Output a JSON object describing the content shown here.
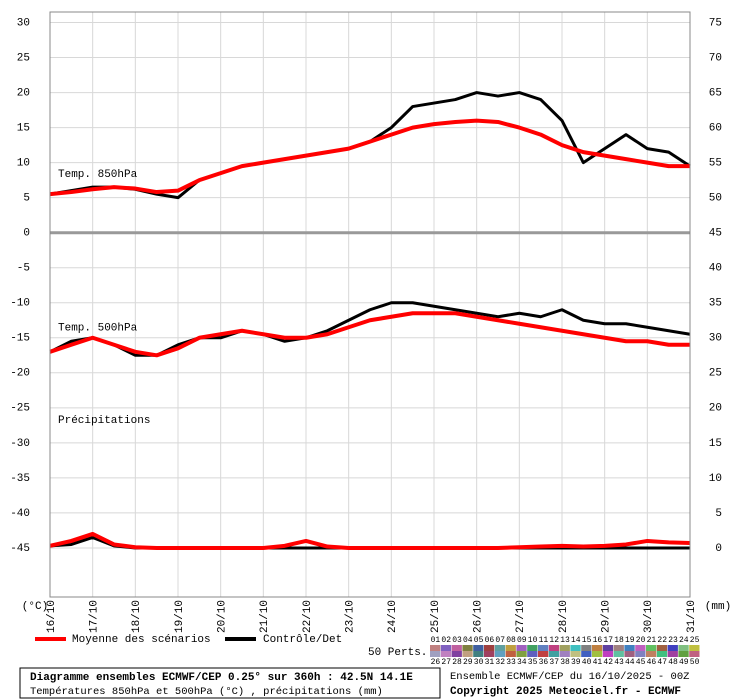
{
  "chart_data": {
    "type": "line",
    "panel_labels": [
      "Temp. 850hPa",
      "Temp. 500hPa",
      "Précipitations"
    ],
    "y_unit": "(°C)",
    "y2_unit": "(mm)",
    "x": [
      0,
      12,
      24,
      36,
      48,
      60,
      72,
      84,
      96,
      108,
      120,
      132,
      144,
      156,
      168,
      180,
      192,
      204,
      216,
      228,
      240,
      252,
      264,
      276,
      288,
      300,
      312,
      324,
      336,
      348,
      360
    ],
    "xlim": [
      0,
      360
    ],
    "xticks": [
      {
        "value": 0,
        "label": "16/10"
      },
      {
        "value": 24,
        "label": "17/10"
      },
      {
        "value": 48,
        "label": "18/10"
      },
      {
        "value": 72,
        "label": "19/10"
      },
      {
        "value": 96,
        "label": "20/10"
      },
      {
        "value": 120,
        "label": "21/10"
      },
      {
        "value": 144,
        "label": "22/10"
      },
      {
        "value": 168,
        "label": "23/10"
      },
      {
        "value": 192,
        "label": "24/10"
      },
      {
        "value": 216,
        "label": "25/10"
      },
      {
        "value": 240,
        "label": "26/10"
      },
      {
        "value": 264,
        "label": "27/10"
      },
      {
        "value": 288,
        "label": "28/10"
      },
      {
        "value": 312,
        "label": "29/10"
      },
      {
        "value": 336,
        "label": "30/10"
      },
      {
        "value": 360,
        "label": "31/10"
      }
    ],
    "ylim": [
      -52,
      31.5
    ],
    "yticks": [
      30,
      25,
      20,
      15,
      10,
      5,
      0,
      -5,
      -10,
      -15,
      -20,
      -25,
      -30,
      -35,
      -40,
      -45
    ],
    "y2lim": [
      -7,
      76.5
    ],
    "y2ticks": [
      75,
      70,
      65,
      60,
      55,
      50,
      45,
      40,
      35,
      30,
      25,
      20,
      15,
      10,
      5,
      0
    ],
    "grid": true,
    "series": [
      {
        "name": "Moyenne des scénarios",
        "color": "#ff0000",
        "t850": [
          5.5,
          5.8,
          6.2,
          6.5,
          6.3,
          5.8,
          6.0,
          7.5,
          8.5,
          9.5,
          10.0,
          10.5,
          11.0,
          11.5,
          12.0,
          13.0,
          14.0,
          15.0,
          15.5,
          15.8,
          16.0,
          15.8,
          15.0,
          14.0,
          12.5,
          11.5,
          11.0,
          10.5,
          10.0,
          9.5,
          9.5
        ],
        "t500": [
          -17,
          -16,
          -15,
          -16,
          -17,
          -17.5,
          -16.5,
          -15,
          -14.5,
          -14,
          -14.5,
          -15,
          -15,
          -14.5,
          -13.5,
          -12.5,
          -12,
          -11.5,
          -11.5,
          -11.5,
          -12,
          -12.5,
          -13,
          -13.5,
          -14,
          -14.5,
          -15,
          -15.5,
          -15.5,
          -16,
          -16
        ],
        "precip": [
          0.3,
          1,
          2,
          0.5,
          0.1,
          0,
          0,
          0,
          0,
          0,
          0,
          0.3,
          1,
          0.2,
          0,
          0,
          0,
          0,
          0,
          0,
          0,
          0,
          0.1,
          0.2,
          0.3,
          0.2,
          0.3,
          0.5,
          1,
          0.8,
          0.7
        ]
      },
      {
        "name": "Contrôle/Det",
        "color": "#000000",
        "t850": [
          5.5,
          6,
          6.5,
          6.5,
          6.2,
          5.5,
          5,
          7.5,
          8.5,
          9.5,
          10,
          10.5,
          11,
          11.5,
          12,
          13,
          15,
          18,
          18.5,
          19,
          20,
          19.5,
          20,
          19,
          16,
          10,
          12,
          14,
          12,
          11.5,
          9.5
        ],
        "t500": [
          -17,
          -15.5,
          -15,
          -16,
          -17.5,
          -17.5,
          -16,
          -15,
          -15,
          -14,
          -14.5,
          -15.5,
          -15,
          -14,
          -12.5,
          -11,
          -10,
          -10,
          -10.5,
          -11,
          -11.5,
          -12,
          -11.5,
          -12,
          -11,
          -12.5,
          -13,
          -13,
          -13.5,
          -14,
          -14.5
        ],
        "precip": [
          0.3,
          0.5,
          1.5,
          0.3,
          0,
          0,
          0,
          0,
          0,
          0,
          0,
          0,
          0,
          0,
          0,
          0,
          0,
          0,
          0,
          0,
          0,
          0,
          0,
          0,
          0,
          0,
          0,
          0,
          0,
          0,
          0
        ]
      }
    ],
    "perturbations": {
      "label": "50 Perts.",
      "members": [
        {
          "name": "01",
          "color": "#c08080"
        },
        {
          "name": "02",
          "color": "#8060c0"
        },
        {
          "name": "03",
          "color": "#c060a0"
        },
        {
          "name": "04",
          "color": "#808040"
        },
        {
          "name": "05",
          "color": "#4060a0"
        },
        {
          "name": "06",
          "color": "#a04040"
        },
        {
          "name": "07",
          "color": "#60a0a0"
        },
        {
          "name": "08",
          "color": "#c0a040"
        },
        {
          "name": "09",
          "color": "#a060c0"
        },
        {
          "name": "10",
          "color": "#40a060"
        },
        {
          "name": "11",
          "color": "#6080c0"
        },
        {
          "name": "12",
          "color": "#c04080"
        },
        {
          "name": "13",
          "color": "#a0a060"
        },
        {
          "name": "14",
          "color": "#40c0c0"
        },
        {
          "name": "15",
          "color": "#808080"
        },
        {
          "name": "16",
          "color": "#c08040"
        },
        {
          "name": "17",
          "color": "#6040a0"
        },
        {
          "name": "18",
          "color": "#a08080"
        },
        {
          "name": "19",
          "color": "#4080c0"
        },
        {
          "name": "20",
          "color": "#c060c0"
        },
        {
          "name": "21",
          "color": "#60c060"
        },
        {
          "name": "22",
          "color": "#a06040"
        },
        {
          "name": "23",
          "color": "#4040c0"
        },
        {
          "name": "24",
          "color": "#80c080"
        },
        {
          "name": "25",
          "color": "#c0c040"
        },
        {
          "name": "26",
          "color": "#a0a0c0"
        },
        {
          "name": "27",
          "color": "#c080c0"
        },
        {
          "name": "28",
          "color": "#8040a0"
        },
        {
          "name": "29",
          "color": "#c0a080"
        },
        {
          "name": "30",
          "color": "#408080"
        },
        {
          "name": "31",
          "color": "#a04060"
        },
        {
          "name": "32",
          "color": "#60a0c0"
        },
        {
          "name": "33",
          "color": "#c06040"
        },
        {
          "name": "34",
          "color": "#80a040"
        },
        {
          "name": "35",
          "color": "#6060c0"
        },
        {
          "name": "36",
          "color": "#c04040"
        },
        {
          "name": "37",
          "color": "#40a0a0"
        },
        {
          "name": "38",
          "color": "#a080c0"
        },
        {
          "name": "39",
          "color": "#c0c080"
        },
        {
          "name": "40",
          "color": "#4060c0"
        },
        {
          "name": "41",
          "color": "#a0c040"
        },
        {
          "name": "42",
          "color": "#c040c0"
        },
        {
          "name": "43",
          "color": "#60c0a0"
        },
        {
          "name": "44",
          "color": "#a06080"
        },
        {
          "name": "45",
          "color": "#8080c0"
        },
        {
          "name": "46",
          "color": "#c08060"
        },
        {
          "name": "47",
          "color": "#40c080"
        },
        {
          "name": "48",
          "color": "#a040a0"
        },
        {
          "name": "49",
          "color": "#60a040"
        },
        {
          "name": "50",
          "color": "#c06080"
        }
      ]
    },
    "footer": {
      "title": "Diagramme ensembles ECMWF/CEP 0.25° sur 360h : 42.5N 14.1E",
      "subtitle": "Températures 850hPa et 500hPa (°C) , précipitations (mm)",
      "run": "Ensemble ECMWF/CEP du 16/10/2025 - 00Z",
      "copyright": "Copyright 2025 Meteociel.fr - ECMWF"
    }
  }
}
